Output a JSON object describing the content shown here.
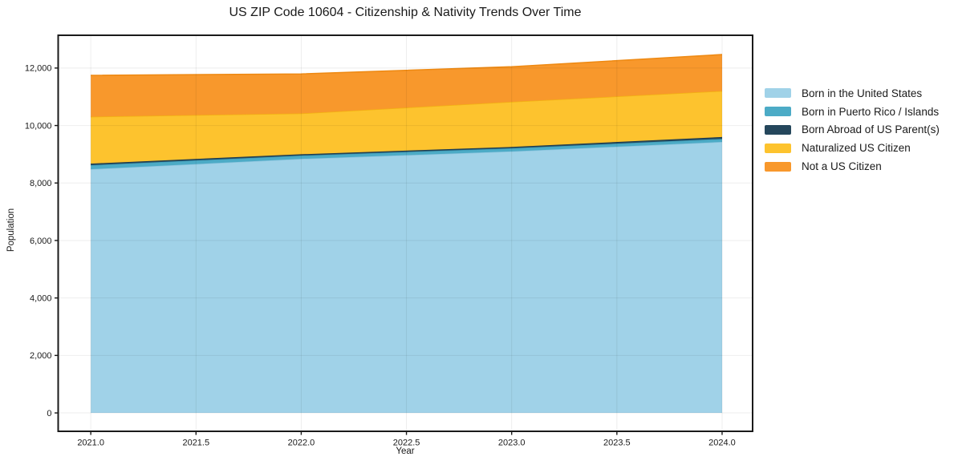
{
  "chart_data": {
    "type": "area",
    "stacked": true,
    "title": "US ZIP Code 10604 - Citizenship & Nativity Trends Over Time",
    "xlabel": "Year",
    "ylabel": "Population",
    "grid": true,
    "legend_position": "right-outside",
    "x": [
      2021,
      2022,
      2023,
      2024
    ],
    "series": [
      {
        "name": "Born in the United States",
        "color": "#a0d2e8",
        "edge_color": "#8cc4de",
        "values": [
          8480,
          8840,
          9100,
          9430
        ]
      },
      {
        "name": "Born in Puerto Rico / Islands",
        "color": "#4cabc6",
        "edge_color": "#3d9ab4",
        "values": [
          140,
          115,
          110,
          105
        ]
      },
      {
        "name": "Born Abroad of US Parent(s)",
        "color": "#25475c",
        "edge_color": "#1c3a4d",
        "values": [
          55,
          45,
          45,
          65
        ]
      },
      {
        "name": "Naturalized US Citizen",
        "color": "#fdc32e",
        "edge_color": "#f2b211",
        "values": [
          1630,
          1420,
          1570,
          1600
        ]
      },
      {
        "name": "Not a US Citizen",
        "color": "#f8982c",
        "edge_color": "#ee8912",
        "values": [
          1440,
          1375,
          1220,
          1270
        ]
      }
    ],
    "cumulative_totals": [
      11745,
      11795,
      12045,
      12470
    ],
    "x_ticks": [
      2021.0,
      2021.5,
      2022.0,
      2022.5,
      2023.0,
      2023.5,
      2024.0
    ],
    "x_tick_labels": [
      "2021.0",
      "2021.5",
      "2022.0",
      "2022.5",
      "2023.0",
      "2023.5",
      "2024.0"
    ],
    "y_ticks": [
      0,
      2000,
      4000,
      6000,
      8000,
      10000,
      12000
    ],
    "y_tick_labels": [
      "0",
      "2,000",
      "4,000",
      "6,000",
      "8,000",
      "10,000",
      "12,000"
    ],
    "x_range": [
      2020.845,
      2024.145
    ],
    "y_range": [
      -640,
      13140
    ],
    "axis_color": "#1a1a1a",
    "grid_color": "rgba(0,0,0,0.07)"
  }
}
